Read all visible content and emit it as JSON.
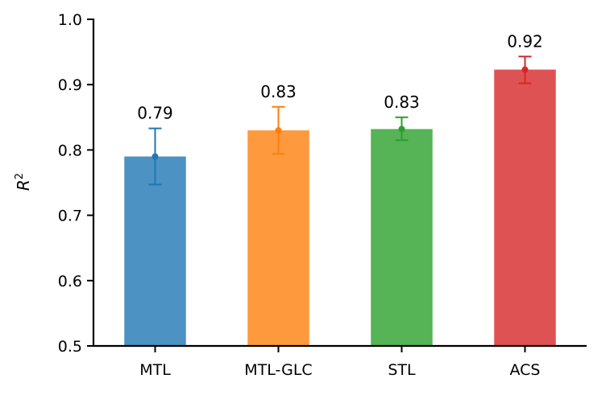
{
  "chart_data": {
    "type": "bar",
    "title": "",
    "xlabel": "",
    "ylabel": "R",
    "ylabel_superscript": "2",
    "ylim": [
      0.5,
      1.0
    ],
    "yticks": [
      0.5,
      0.6,
      0.7,
      0.8,
      0.9,
      1.0
    ],
    "ytick_labels": [
      "0.5",
      "0.6",
      "0.7",
      "0.8",
      "0.9",
      "1.0"
    ],
    "categories": [
      "MTL",
      "MTL-GLC",
      "STL",
      "ACS"
    ],
    "values": [
      0.79,
      0.83,
      0.832,
      0.923
    ],
    "error_low": [
      0.747,
      0.794,
      0.815,
      0.902
    ],
    "error_high": [
      0.833,
      0.866,
      0.85,
      0.943
    ],
    "data_labels": [
      "0.79",
      "0.83",
      "0.83",
      "0.92"
    ],
    "bar_colors": [
      "#4c92c3",
      "#ff993e",
      "#56b356",
      "#de5253"
    ],
    "error_colors": [
      "#1f77b4",
      "#ff7f0e",
      "#2ca02c",
      "#d62728"
    ],
    "grid": false,
    "legend": "none"
  }
}
